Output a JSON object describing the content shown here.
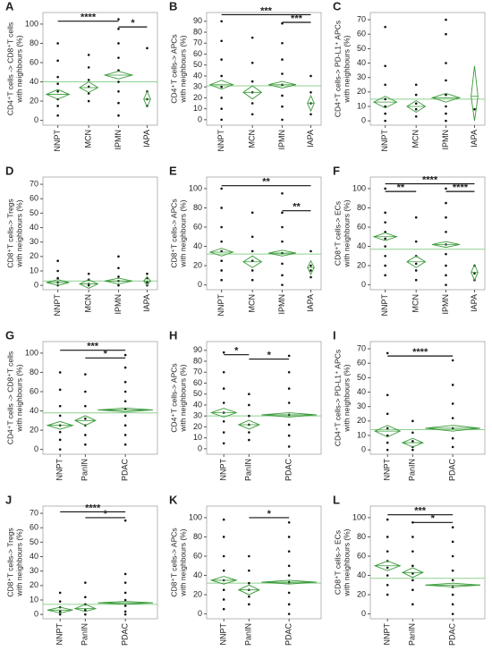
{
  "chart_data": [
    {
      "type": "diamond",
      "letter": "A",
      "ylabel": [
        "CD4⁺T cells -> CD8⁺T cells",
        "with neighbours (%)"
      ],
      "categories": [
        "NNPT",
        "MCN",
        "IPMN",
        "IAPA"
      ],
      "ylim": [
        -5,
        112
      ],
      "yticks": [
        0,
        20,
        40,
        60,
        80,
        100
      ],
      "color": "#3a9a3a",
      "mean_color": "#8fd08f",
      "grand_mean": 40,
      "groups": [
        {
          "mean": 27,
          "ci": [
            22,
            32
          ],
          "points": [
            80,
            62,
            45,
            38,
            30,
            22,
            15,
            5
          ]
        },
        {
          "mean": 34,
          "ci": [
            29,
            40
          ],
          "points": [
            68,
            55,
            42,
            35,
            28,
            20
          ]
        },
        {
          "mean": 47,
          "ci": [
            43,
            51
          ],
          "points": [
            105,
            95,
            80,
            65,
            52,
            40,
            30,
            18,
            5
          ]
        },
        {
          "mean": 22,
          "ci": [
            14,
            30
          ],
          "points": [
            75,
            30,
            22,
            15
          ]
        }
      ],
      "brackets": [
        {
          "between": [
            "NNPT",
            "IPMN"
          ],
          "y": 103,
          "label": "****"
        },
        {
          "between": [
            "IPMN",
            "IAPA"
          ],
          "y": 97,
          "label": "*"
        }
      ]
    },
    {
      "type": "diamond",
      "letter": "B",
      "ylabel": [
        "CD4⁺T cells-> APCs",
        "with neighbours (%)"
      ],
      "categories": [
        "NNPT",
        "MCN",
        "IPMN",
        "IAPA"
      ],
      "ylim": [
        -5,
        98
      ],
      "yticks": [
        0,
        10,
        20,
        30,
        40,
        50,
        60,
        70,
        80,
        90
      ],
      "color": "#3a9a3a",
      "mean_color": "#8fd08f",
      "grand_mean": 31,
      "groups": [
        {
          "mean": 32,
          "ci": [
            28,
            36
          ],
          "points": [
            90,
            72,
            55,
            40,
            30,
            20,
            10,
            0
          ]
        },
        {
          "mean": 25,
          "ci": [
            19,
            31
          ],
          "points": [
            75,
            52,
            35,
            25,
            15,
            5
          ]
        },
        {
          "mean": 32,
          "ci": [
            29,
            35
          ],
          "points": [
            88,
            70,
            55,
            42,
            32,
            22,
            12,
            0
          ]
        },
        {
          "mean": 15,
          "ci": [
            8,
            22
          ],
          "points": [
            40,
            25,
            15,
            5
          ]
        }
      ],
      "brackets": [
        {
          "between": [
            "NNPT",
            "IAPA"
          ],
          "y": 96,
          "label": "***"
        },
        {
          "between": [
            "IPMN",
            "IAPA"
          ],
          "y": 89,
          "label": "***"
        }
      ]
    },
    {
      "type": "diamond",
      "letter": "C",
      "ylabel": [
        "CD4⁺T cells-> PD-L1⁺ APCs",
        "with neighbours (%)"
      ],
      "categories": [
        "NNPT",
        "MCN",
        "IPMN",
        "IAPA"
      ],
      "ylim": [
        -3,
        75
      ],
      "yticks": [
        0,
        10,
        20,
        30,
        40,
        50,
        60,
        70
      ],
      "color": "#3a9a3a",
      "mean_color": "#8fd08f",
      "grand_mean": 15,
      "groups": [
        {
          "mean": 13,
          "ci": [
            9,
            17
          ],
          "points": [
            65,
            38,
            25,
            15,
            10,
            5,
            0
          ]
        },
        {
          "mean": 10,
          "ci": [
            6,
            14
          ],
          "points": [
            25,
            18,
            12,
            8,
            3
          ]
        },
        {
          "mean": 16,
          "ci": [
            13,
            19
          ],
          "points": [
            70,
            60,
            40,
            28,
            18,
            10,
            5,
            0
          ]
        },
        {
          "mean": 17,
          "ci": [
            0,
            38
          ],
          "points": [
            8
          ]
        }
      ],
      "brackets": []
    },
    {
      "type": "diamond",
      "letter": "D",
      "ylabel": [
        "CD8⁺T cells-> Tregs",
        "with neighbours (%)"
      ],
      "categories": [
        "NNPT",
        "MCN",
        "IPMN",
        "IAPA"
      ],
      "ylim": [
        -3,
        75
      ],
      "yticks": [
        0,
        10,
        20,
        30,
        40,
        50,
        60,
        70
      ],
      "color": "#3a9a3a",
      "mean_color": "#8fd08f",
      "grand_mean": 3,
      "groups": [
        {
          "mean": 2,
          "ci": [
            0,
            4
          ],
          "points": [
            17,
            10,
            5,
            2,
            0
          ]
        },
        {
          "mean": 1,
          "ci": [
            -2,
            4
          ],
          "points": [
            8,
            4,
            1,
            0
          ]
        },
        {
          "mean": 3,
          "ci": [
            1,
            5
          ],
          "points": [
            20,
            12,
            6,
            3,
            0
          ]
        },
        {
          "mean": 3,
          "ci": [
            0,
            6
          ],
          "points": [
            8,
            5,
            2,
            0
          ]
        }
      ],
      "brackets": []
    },
    {
      "type": "diamond",
      "letter": "E",
      "ylabel": [
        "CD8⁺T cells-> APCs",
        "with neighbours (%)"
      ],
      "categories": [
        "NNPT",
        "MCN",
        "IPMN",
        "IAPA"
      ],
      "ylim": [
        -5,
        112
      ],
      "yticks": [
        0,
        20,
        40,
        60,
        80,
        100
      ],
      "color": "#3a9a3a",
      "mean_color": "#8fd08f",
      "grand_mean": 32,
      "groups": [
        {
          "mean": 34,
          "ci": [
            30,
            38
          ],
          "points": [
            100,
            80,
            60,
            45,
            35,
            25,
            15,
            5
          ]
        },
        {
          "mean": 24,
          "ci": [
            18,
            30
          ],
          "points": [
            75,
            50,
            35,
            25,
            15,
            5
          ]
        },
        {
          "mean": 33,
          "ci": [
            30,
            36
          ],
          "points": [
            95,
            75,
            60,
            45,
            33,
            22,
            10,
            0
          ]
        },
        {
          "mean": 18,
          "ci": [
            11,
            25
          ],
          "points": [
            35,
            20,
            15,
            8
          ]
        }
      ],
      "brackets": [
        {
          "between": [
            "NNPT",
            "IAPA"
          ],
          "y": 103,
          "label": "**"
        },
        {
          "between": [
            "IPMN",
            "IAPA"
          ],
          "y": 77,
          "label": "**"
        }
      ]
    },
    {
      "type": "diamond",
      "letter": "F",
      "ylabel": [
        "CD8⁺T cells-> ECs",
        "with neighbours (%)"
      ],
      "categories": [
        "NNPT",
        "MCN",
        "IPMN",
        "IAPA"
      ],
      "ylim": [
        -5,
        112
      ],
      "yticks": [
        0,
        20,
        40,
        60,
        80,
        100
      ],
      "color": "#3a9a3a",
      "mean_color": "#8fd08f",
      "grand_mean": 37,
      "groups": [
        {
          "mean": 50,
          "ci": [
            46,
            54
          ],
          "points": [
            100,
            75,
            65,
            55,
            48,
            40,
            30,
            20,
            10
          ]
        },
        {
          "mean": 24,
          "ci": [
            18,
            30
          ],
          "points": [
            70,
            45,
            30,
            22,
            15,
            5
          ]
        },
        {
          "mean": 42,
          "ci": [
            39,
            45
          ],
          "points": [
            100,
            85,
            70,
            55,
            42,
            32,
            20,
            10,
            0
          ]
        },
        {
          "mean": 13,
          "ci": [
            5,
            21
          ],
          "points": [
            20,
            12,
            5
          ]
        }
      ],
      "brackets": [
        {
          "between": [
            "NNPT",
            "IAPA"
          ],
          "y": 105,
          "label": "****"
        },
        {
          "between": [
            "NNPT",
            "MCN"
          ],
          "y": 97,
          "label": "**"
        },
        {
          "between": [
            "IPMN",
            "IAPA"
          ],
          "y": 97,
          "label": "****"
        }
      ]
    },
    {
      "type": "diamond",
      "letter": "G",
      "ylabel": [
        "CD4⁺T cells -> CD8⁺T cells",
        "with neighbours (%)"
      ],
      "categories": [
        "NNPT",
        "PanIN",
        "PDAC"
      ],
      "ylim": [
        -5,
        112
      ],
      "yticks": [
        0,
        20,
        40,
        60,
        80,
        100
      ],
      "color": "#3a9a3a",
      "mean_color": "#8fd08f",
      "grand_mean": 38,
      "groups": [
        {
          "mean": 25,
          "ci": [
            21,
            29
          ],
          "points": [
            80,
            62,
            45,
            35,
            25,
            18,
            10,
            0
          ]
        },
        {
          "mean": 30,
          "ci": [
            25,
            35
          ],
          "points": [
            78,
            60,
            45,
            32,
            25,
            15,
            5
          ]
        },
        {
          "mean": 41,
          "ci": [
            39,
            43
          ],
          "points": [
            98,
            85,
            70,
            60,
            50,
            42,
            35,
            25,
            15,
            5
          ]
        }
      ],
      "brackets": [
        {
          "between": [
            "NNPT",
            "PDAC"
          ],
          "y": 103,
          "label": "***"
        },
        {
          "between": [
            "PanIN",
            "PDAC"
          ],
          "y": 95,
          "label": "*"
        }
      ]
    },
    {
      "type": "diamond",
      "letter": "H",
      "ylabel": [
        "CD4⁺T cells-> APCs",
        "with neighbours (%)"
      ],
      "categories": [
        "NNPT",
        "PanIN",
        "PDAC"
      ],
      "ylim": [
        -5,
        98
      ],
      "yticks": [
        0,
        10,
        20,
        30,
        40,
        50,
        60,
        70,
        80,
        90
      ],
      "color": "#3a9a3a",
      "mean_color": "#8fd08f",
      "grand_mean": 30,
      "groups": [
        {
          "mean": 33,
          "ci": [
            29,
            37
          ],
          "points": [
            88,
            70,
            55,
            42,
            33,
            25,
            15,
            5
          ]
        },
        {
          "mean": 22,
          "ci": [
            18,
            26
          ],
          "points": [
            50,
            40,
            30,
            22,
            15,
            8
          ]
        },
        {
          "mean": 31,
          "ci": [
            29,
            33
          ],
          "points": [
            85,
            70,
            55,
            42,
            31,
            22,
            12,
            2
          ]
        }
      ],
      "brackets": [
        {
          "between": [
            "NNPT",
            "PanIN"
          ],
          "y": 86,
          "label": "*"
        },
        {
          "between": [
            "PanIN",
            "PDAC"
          ],
          "y": 82,
          "label": "*"
        }
      ]
    },
    {
      "type": "diamond",
      "letter": "I",
      "ylabel": [
        "CD4⁺T cells-> PD-L1⁺ APCs",
        "with neighbours (%)"
      ],
      "categories": [
        "NNPT",
        "PanIN",
        "PDAC"
      ],
      "ylim": [
        -3,
        75
      ],
      "yticks": [
        0,
        10,
        20,
        30,
        40,
        50,
        60,
        70
      ],
      "color": "#3a9a3a",
      "mean_color": "#8fd08f",
      "grand_mean": 14,
      "groups": [
        {
          "mean": 13,
          "ci": [
            9,
            17
          ],
          "points": [
            67,
            38,
            25,
            15,
            10,
            5,
            0
          ]
        },
        {
          "mean": 5,
          "ci": [
            2,
            8
          ],
          "points": [
            20,
            12,
            6,
            2,
            0
          ]
        },
        {
          "mean": 15,
          "ci": [
            13,
            17
          ],
          "points": [
            62,
            45,
            32,
            22,
            15,
            8,
            2
          ]
        }
      ],
      "brackets": [
        {
          "between": [
            "NNPT",
            "PDAC"
          ],
          "y": 65,
          "label": "****"
        }
      ]
    },
    {
      "type": "diamond",
      "letter": "J",
      "ylabel": [
        "CD8⁺T cells-> Tregs",
        "with neighbours (%)"
      ],
      "categories": [
        "NNPT",
        "PanIN",
        "PDAC"
      ],
      "ylim": [
        -3,
        75
      ],
      "yticks": [
        0,
        10,
        20,
        30,
        40,
        50,
        60,
        70
      ],
      "color": "#3a9a3a",
      "mean_color": "#8fd08f",
      "grand_mean": 7,
      "groups": [
        {
          "mean": 3,
          "ci": [
            1,
            5
          ],
          "points": [
            15,
            9,
            5,
            2,
            0
          ]
        },
        {
          "mean": 4,
          "ci": [
            2,
            7
          ],
          "points": [
            22,
            12,
            7,
            3,
            0
          ]
        },
        {
          "mean": 8,
          "ci": [
            7,
            9
          ],
          "points": [
            65,
            28,
            22,
            15,
            10,
            6,
            2,
            0
          ]
        }
      ],
      "brackets": [
        {
          "between": [
            "NNPT",
            "PDAC"
          ],
          "y": 71,
          "label": "****"
        },
        {
          "between": [
            "PanIN",
            "PDAC"
          ],
          "y": 67,
          "label": "*"
        }
      ]
    },
    {
      "type": "diamond",
      "letter": "K",
      "ylabel": [
        "CD8⁺T cells-> APCs",
        "with neighbours (%)"
      ],
      "categories": [
        "NNPT",
        "PanIN",
        "PDAC"
      ],
      "ylim": [
        -5,
        112
      ],
      "yticks": [
        0,
        20,
        40,
        60,
        80,
        100
      ],
      "color": "#3a9a3a",
      "mean_color": "#8fd08f",
      "grand_mean": 32,
      "groups": [
        {
          "mean": 35,
          "ci": [
            31,
            39
          ],
          "points": [
            98,
            80,
            60,
            45,
            35,
            25,
            15,
            5
          ]
        },
        {
          "mean": 25,
          "ci": [
            20,
            30
          ],
          "points": [
            60,
            45,
            32,
            25,
            18,
            10
          ]
        },
        {
          "mean": 33,
          "ci": [
            31,
            35
          ],
          "points": [
            95,
            80,
            65,
            50,
            40,
            33,
            22,
            10,
            0
          ]
        }
      ],
      "brackets": [
        {
          "between": [
            "PanIN",
            "PDAC"
          ],
          "y": 100,
          "label": "*"
        }
      ]
    },
    {
      "type": "diamond",
      "letter": "L",
      "ylabel": [
        "CD8⁺T cells-> ECs",
        "with neighbours (%)"
      ],
      "categories": [
        "NNPT",
        "PanIN",
        "PDAC"
      ],
      "ylim": [
        -5,
        112
      ],
      "yticks": [
        0,
        20,
        40,
        60,
        80,
        100
      ],
      "color": "#3a9a3a",
      "mean_color": "#8fd08f",
      "grand_mean": 37,
      "groups": [
        {
          "mean": 50,
          "ci": [
            45,
            55
          ],
          "points": [
            98,
            80,
            65,
            55,
            48,
            40,
            30,
            20
          ]
        },
        {
          "mean": 43,
          "ci": [
            38,
            48
          ],
          "points": [
            95,
            80,
            65,
            50,
            42,
            35,
            25,
            10
          ]
        },
        {
          "mean": 30,
          "ci": [
            28,
            32
          ],
          "points": [
            90,
            75,
            60,
            45,
            35,
            28,
            20,
            10,
            0
          ]
        }
      ],
      "brackets": [
        {
          "between": [
            "NNPT",
            "PDAC"
          ],
          "y": 103,
          "label": "***"
        },
        {
          "between": [
            "PanIN",
            "PDAC"
          ],
          "y": 95,
          "label": "*"
        }
      ]
    }
  ]
}
